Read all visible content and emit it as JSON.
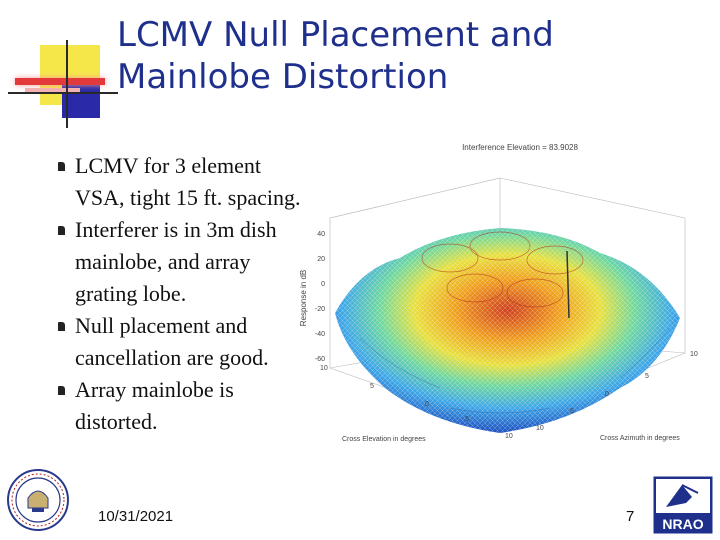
{
  "title": {
    "line1": "LCMV Null Placement and",
    "line2": "Mainlobe Distortion"
  },
  "bullets": [
    "LCMV for 3 element VSA, tight 15 ft. spacing.",
    "Interferer is in 3m dish mainlobe, and array grating lobe.",
    "Null placement and cancellation are good.",
    "Array mainlobe is distorted."
  ],
  "plot": {
    "title": "Interference Elevation = 83.9028",
    "zlabel": "Response in dB",
    "xlabel": "Cross Elevation in degrees",
    "ylabel": "Cross Azimuth in degrees",
    "z_ticks": [
      "40",
      "20",
      "0",
      "-20",
      "-40",
      "-60"
    ],
    "x_ticks": [
      "10",
      "5",
      "0",
      "5",
      "10"
    ],
    "y_ticks": [
      "10",
      "5",
      "0",
      "5",
      "10"
    ]
  },
  "footer": {
    "date": "10/31/2021",
    "page": "7"
  },
  "logos": {
    "right": "NRAO",
    "left": "university seal"
  },
  "colors": {
    "title": "#1f2f8c",
    "accent_yellow": "#f5e64a",
    "accent_blue": "#2a2aa8",
    "accent_red": "#e23a3a"
  }
}
